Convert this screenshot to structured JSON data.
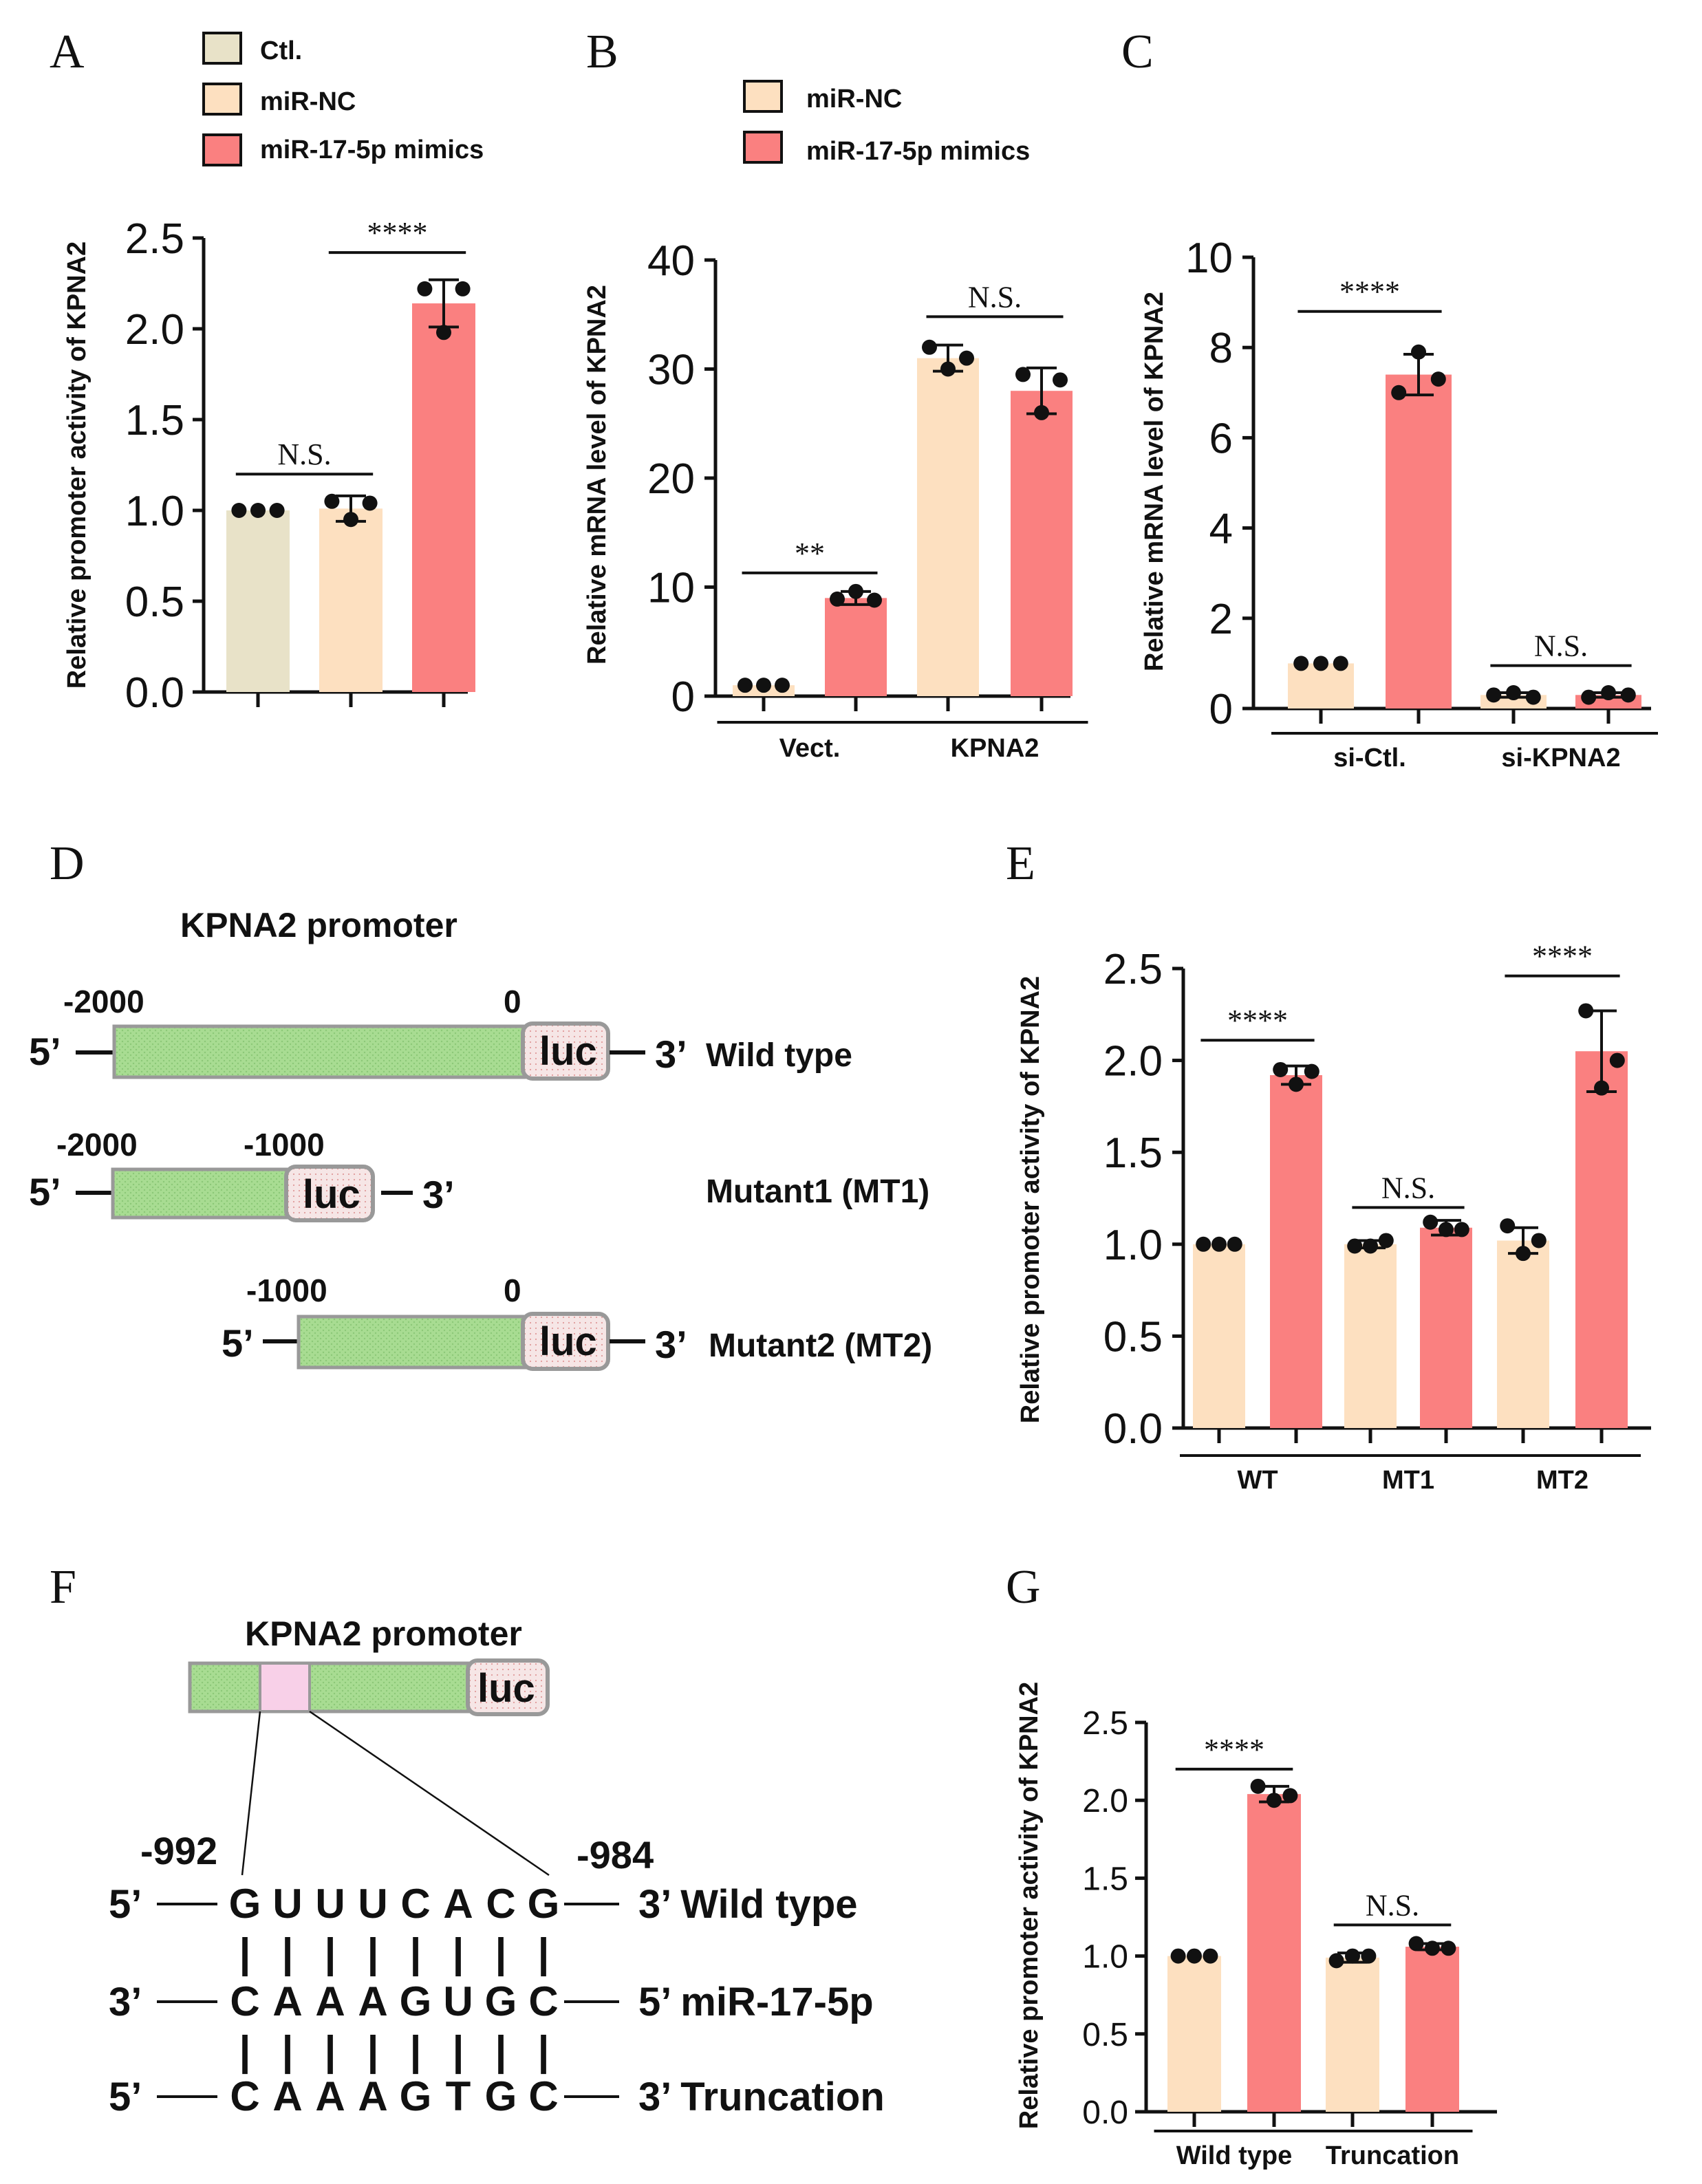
{
  "colors": {
    "ctl": "#e8e2c8",
    "nc": "#fde0c0",
    "mimics": "#fa8080",
    "green": "#a8dc92",
    "pink": "#f8d0e8",
    "luc": "#f6dede",
    "box_border": "#999999"
  },
  "legend_a": {
    "items": [
      {
        "label": "Ctl.",
        "color": "#e8e2c8"
      },
      {
        "label": "miR-NC",
        "color": "#fde0c0"
      },
      {
        "label": "miR-17-5p mimics",
        "color": "#fa8080"
      }
    ]
  },
  "legend_b": {
    "items": [
      {
        "label": "miR-NC",
        "color": "#fde0c0"
      },
      {
        "label": "miR-17-5p mimics",
        "color": "#fa8080"
      }
    ]
  },
  "chart_data": [
    {
      "panel": "A",
      "type": "bar",
      "ylabel": "Relative promoter activity of KPNA2",
      "ylim": [
        0,
        2.5
      ],
      "yticks": [
        "0.0",
        "0.5",
        "1.0",
        "1.5",
        "2.0",
        "2.5"
      ],
      "bars": [
        {
          "name": "Ctl.",
          "value": 1.0,
          "err": 0.0,
          "points": [
            1.0,
            1.0,
            1.0
          ],
          "color": "#e8e2c8"
        },
        {
          "name": "miR-NC",
          "value": 1.01,
          "err": 0.07,
          "points": [
            1.05,
            0.95,
            1.04
          ],
          "color": "#fde0c0"
        },
        {
          "name": "miR-17-5p mimics",
          "value": 2.14,
          "err": 0.13,
          "points": [
            2.22,
            1.98,
            2.22
          ],
          "color": "#fa8080"
        }
      ],
      "groups": [],
      "significance": [
        {
          "from": 0,
          "to": 1,
          "label": "N.S.",
          "y": 1.2
        },
        {
          "from": 1,
          "to": 2,
          "label": "****",
          "y": 2.42
        }
      ]
    },
    {
      "panel": "B",
      "type": "bar",
      "ylabel": "Relative mRNA level of KPNA2",
      "ylim": [
        0,
        40
      ],
      "yticks": [
        "0",
        "10",
        "20",
        "30",
        "40"
      ],
      "bars": [
        {
          "name": "miR-NC",
          "value": 1.0,
          "err": 0.0,
          "points": [
            1.0,
            1.0,
            1.0
          ],
          "color": "#fde0c0"
        },
        {
          "name": "miR-17-5p mimics",
          "value": 9.0,
          "err": 0.6,
          "points": [
            8.9,
            9.6,
            8.8
          ],
          "color": "#fa8080"
        },
        {
          "name": "miR-NC",
          "value": 31.0,
          "err": 1.2,
          "points": [
            32.0,
            30.0,
            31.0
          ],
          "color": "#fde0c0"
        },
        {
          "name": "miR-17-5p mimics",
          "value": 28.0,
          "err": 2.1,
          "points": [
            29.5,
            26.0,
            29.0
          ],
          "color": "#fa8080"
        }
      ],
      "groups": [
        {
          "label": "Vect.",
          "bars": [
            0,
            1
          ]
        },
        {
          "label": "KPNA2",
          "bars": [
            2,
            3
          ]
        }
      ],
      "significance": [
        {
          "from": 0,
          "to": 1,
          "label": "**",
          "y": 11.3
        },
        {
          "from": 2,
          "to": 3,
          "label": "N.S.",
          "y": 34.8
        }
      ]
    },
    {
      "panel": "C",
      "type": "bar",
      "ylabel": "Relative mRNA level of KPNA2",
      "ylim": [
        0,
        10
      ],
      "yticks": [
        "0",
        "2",
        "4",
        "6",
        "8",
        "10"
      ],
      "bars": [
        {
          "name": "miR-NC",
          "value": 1.0,
          "err": 0.0,
          "points": [
            1.0,
            1.0,
            1.0
          ],
          "color": "#fde0c0"
        },
        {
          "name": "miR-17-5p mimics",
          "value": 7.4,
          "err": 0.45,
          "points": [
            7.0,
            7.9,
            7.3
          ],
          "color": "#fa8080"
        },
        {
          "name": "miR-NC",
          "value": 0.3,
          "err": 0.05,
          "points": [
            0.3,
            0.35,
            0.25
          ],
          "color": "#fde0c0"
        },
        {
          "name": "miR-17-5p mimics",
          "value": 0.3,
          "err": 0.05,
          "points": [
            0.25,
            0.35,
            0.3
          ],
          "color": "#fa8080"
        }
      ],
      "groups": [
        {
          "label": "si-Ctl.",
          "bars": [
            0,
            1
          ]
        },
        {
          "label": "si-KPNA2",
          "bars": [
            2,
            3
          ]
        }
      ],
      "significance": [
        {
          "from": 0,
          "to": 1,
          "label": "****",
          "y": 8.8
        },
        {
          "from": 2,
          "to": 3,
          "label": "N.S.",
          "y": 0.95
        }
      ]
    },
    {
      "panel": "E",
      "type": "bar",
      "ylabel": "Relative promoter activity of KPNA2",
      "ylim": [
        0,
        2.5
      ],
      "yticks": [
        "0.0",
        "0.5",
        "1.0",
        "1.5",
        "2.0",
        "2.5"
      ],
      "bars": [
        {
          "name": "miR-NC",
          "value": 1.0,
          "err": 0.0,
          "points": [
            1.0,
            1.0,
            1.0
          ],
          "color": "#fde0c0"
        },
        {
          "name": "miR-17-5p mimics",
          "value": 1.92,
          "err": 0.05,
          "points": [
            1.95,
            1.87,
            1.94
          ],
          "color": "#fa8080"
        },
        {
          "name": "miR-NC",
          "value": 1.0,
          "err": 0.02,
          "points": [
            0.99,
            0.99,
            1.02
          ],
          "color": "#fde0c0"
        },
        {
          "name": "miR-17-5p mimics",
          "value": 1.09,
          "err": 0.04,
          "points": [
            1.12,
            1.08,
            1.08
          ],
          "color": "#fa8080"
        },
        {
          "name": "miR-NC",
          "value": 1.02,
          "err": 0.07,
          "points": [
            1.1,
            0.95,
            1.02
          ],
          "color": "#fde0c0"
        },
        {
          "name": "miR-17-5p mimics",
          "value": 2.05,
          "err": 0.22,
          "points": [
            2.27,
            1.85,
            2.0
          ],
          "color": "#fa8080"
        }
      ],
      "groups": [
        {
          "label": "WT",
          "bars": [
            0,
            1
          ]
        },
        {
          "label": "MT1",
          "bars": [
            2,
            3
          ]
        },
        {
          "label": "MT2",
          "bars": [
            4,
            5
          ]
        }
      ],
      "significance": [
        {
          "from": 0,
          "to": 1,
          "label": "****",
          "y": 2.11
        },
        {
          "from": 2,
          "to": 3,
          "label": "N.S.",
          "y": 1.2
        },
        {
          "from": 4,
          "to": 5,
          "label": "****",
          "y": 2.46
        }
      ]
    },
    {
      "panel": "G",
      "type": "bar",
      "ylabel": "Relative promoter activity of KPNA2",
      "ylim": [
        0,
        2.5
      ],
      "yticks": [
        "0.0",
        "0.5",
        "1.0",
        "1.5",
        "2.0",
        "2.5"
      ],
      "bars": [
        {
          "name": "miR-NC",
          "value": 1.0,
          "err": 0.0,
          "points": [
            1.0,
            1.0,
            1.0
          ],
          "color": "#fde0c0"
        },
        {
          "name": "miR-17-5p mimics",
          "value": 2.04,
          "err": 0.05,
          "points": [
            2.09,
            2.0,
            2.03
          ],
          "color": "#fa8080"
        },
        {
          "name": "miR-NC",
          "value": 0.99,
          "err": 0.03,
          "points": [
            0.97,
            1.0,
            1.0
          ],
          "color": "#fde0c0"
        },
        {
          "name": "miR-17-5p mimics",
          "value": 1.06,
          "err": 0.02,
          "points": [
            1.08,
            1.05,
            1.05
          ],
          "color": "#fa8080"
        }
      ],
      "groups": [
        {
          "label": "Wild type",
          "bars": [
            0,
            1
          ]
        },
        {
          "label": "Truncation",
          "bars": [
            2,
            3
          ]
        }
      ],
      "significance": [
        {
          "from": 0,
          "to": 1,
          "label": "****",
          "y": 2.2
        },
        {
          "from": 2,
          "to": 3,
          "label": "N.S.",
          "y": 1.2
        }
      ]
    }
  ],
  "panel_labels": {
    "a": "A",
    "b": "B",
    "c": "C",
    "d": "D",
    "e": "E",
    "f": "F",
    "g": "G"
  },
  "diagram_d": {
    "title": "KPNA2 promoter",
    "luc": "luc",
    "five_prime": "5’",
    "three_prime": "3’",
    "wt": {
      "start": "-2000",
      "end": "0",
      "name": "Wild type"
    },
    "mt1": {
      "start": "-2000",
      "end": "-1000",
      "name": "Mutant1 (MT1)"
    },
    "mt2": {
      "start": "-1000",
      "end": "0",
      "name": "Mutant2 (MT2)"
    }
  },
  "diagram_f": {
    "title": "KPNA2 promoter",
    "luc": "luc",
    "pos_start": "-992",
    "pos_end": "-984",
    "rows": [
      {
        "left": "5’",
        "letters": [
          "G",
          "U",
          "U",
          "U",
          "C",
          "A",
          "C",
          "G"
        ],
        "right": "3’ Wild type"
      },
      {
        "left": "3’",
        "letters": [
          "C",
          "A",
          "A",
          "A",
          "G",
          "U",
          "G",
          "C"
        ],
        "right": "5’ miR-17-5p"
      },
      {
        "left": "5’",
        "letters": [
          "C",
          "A",
          "A",
          "A",
          "G",
          "T",
          "G",
          "C"
        ],
        "right": "3’ Truncation"
      }
    ],
    "pair_mark": "|"
  }
}
